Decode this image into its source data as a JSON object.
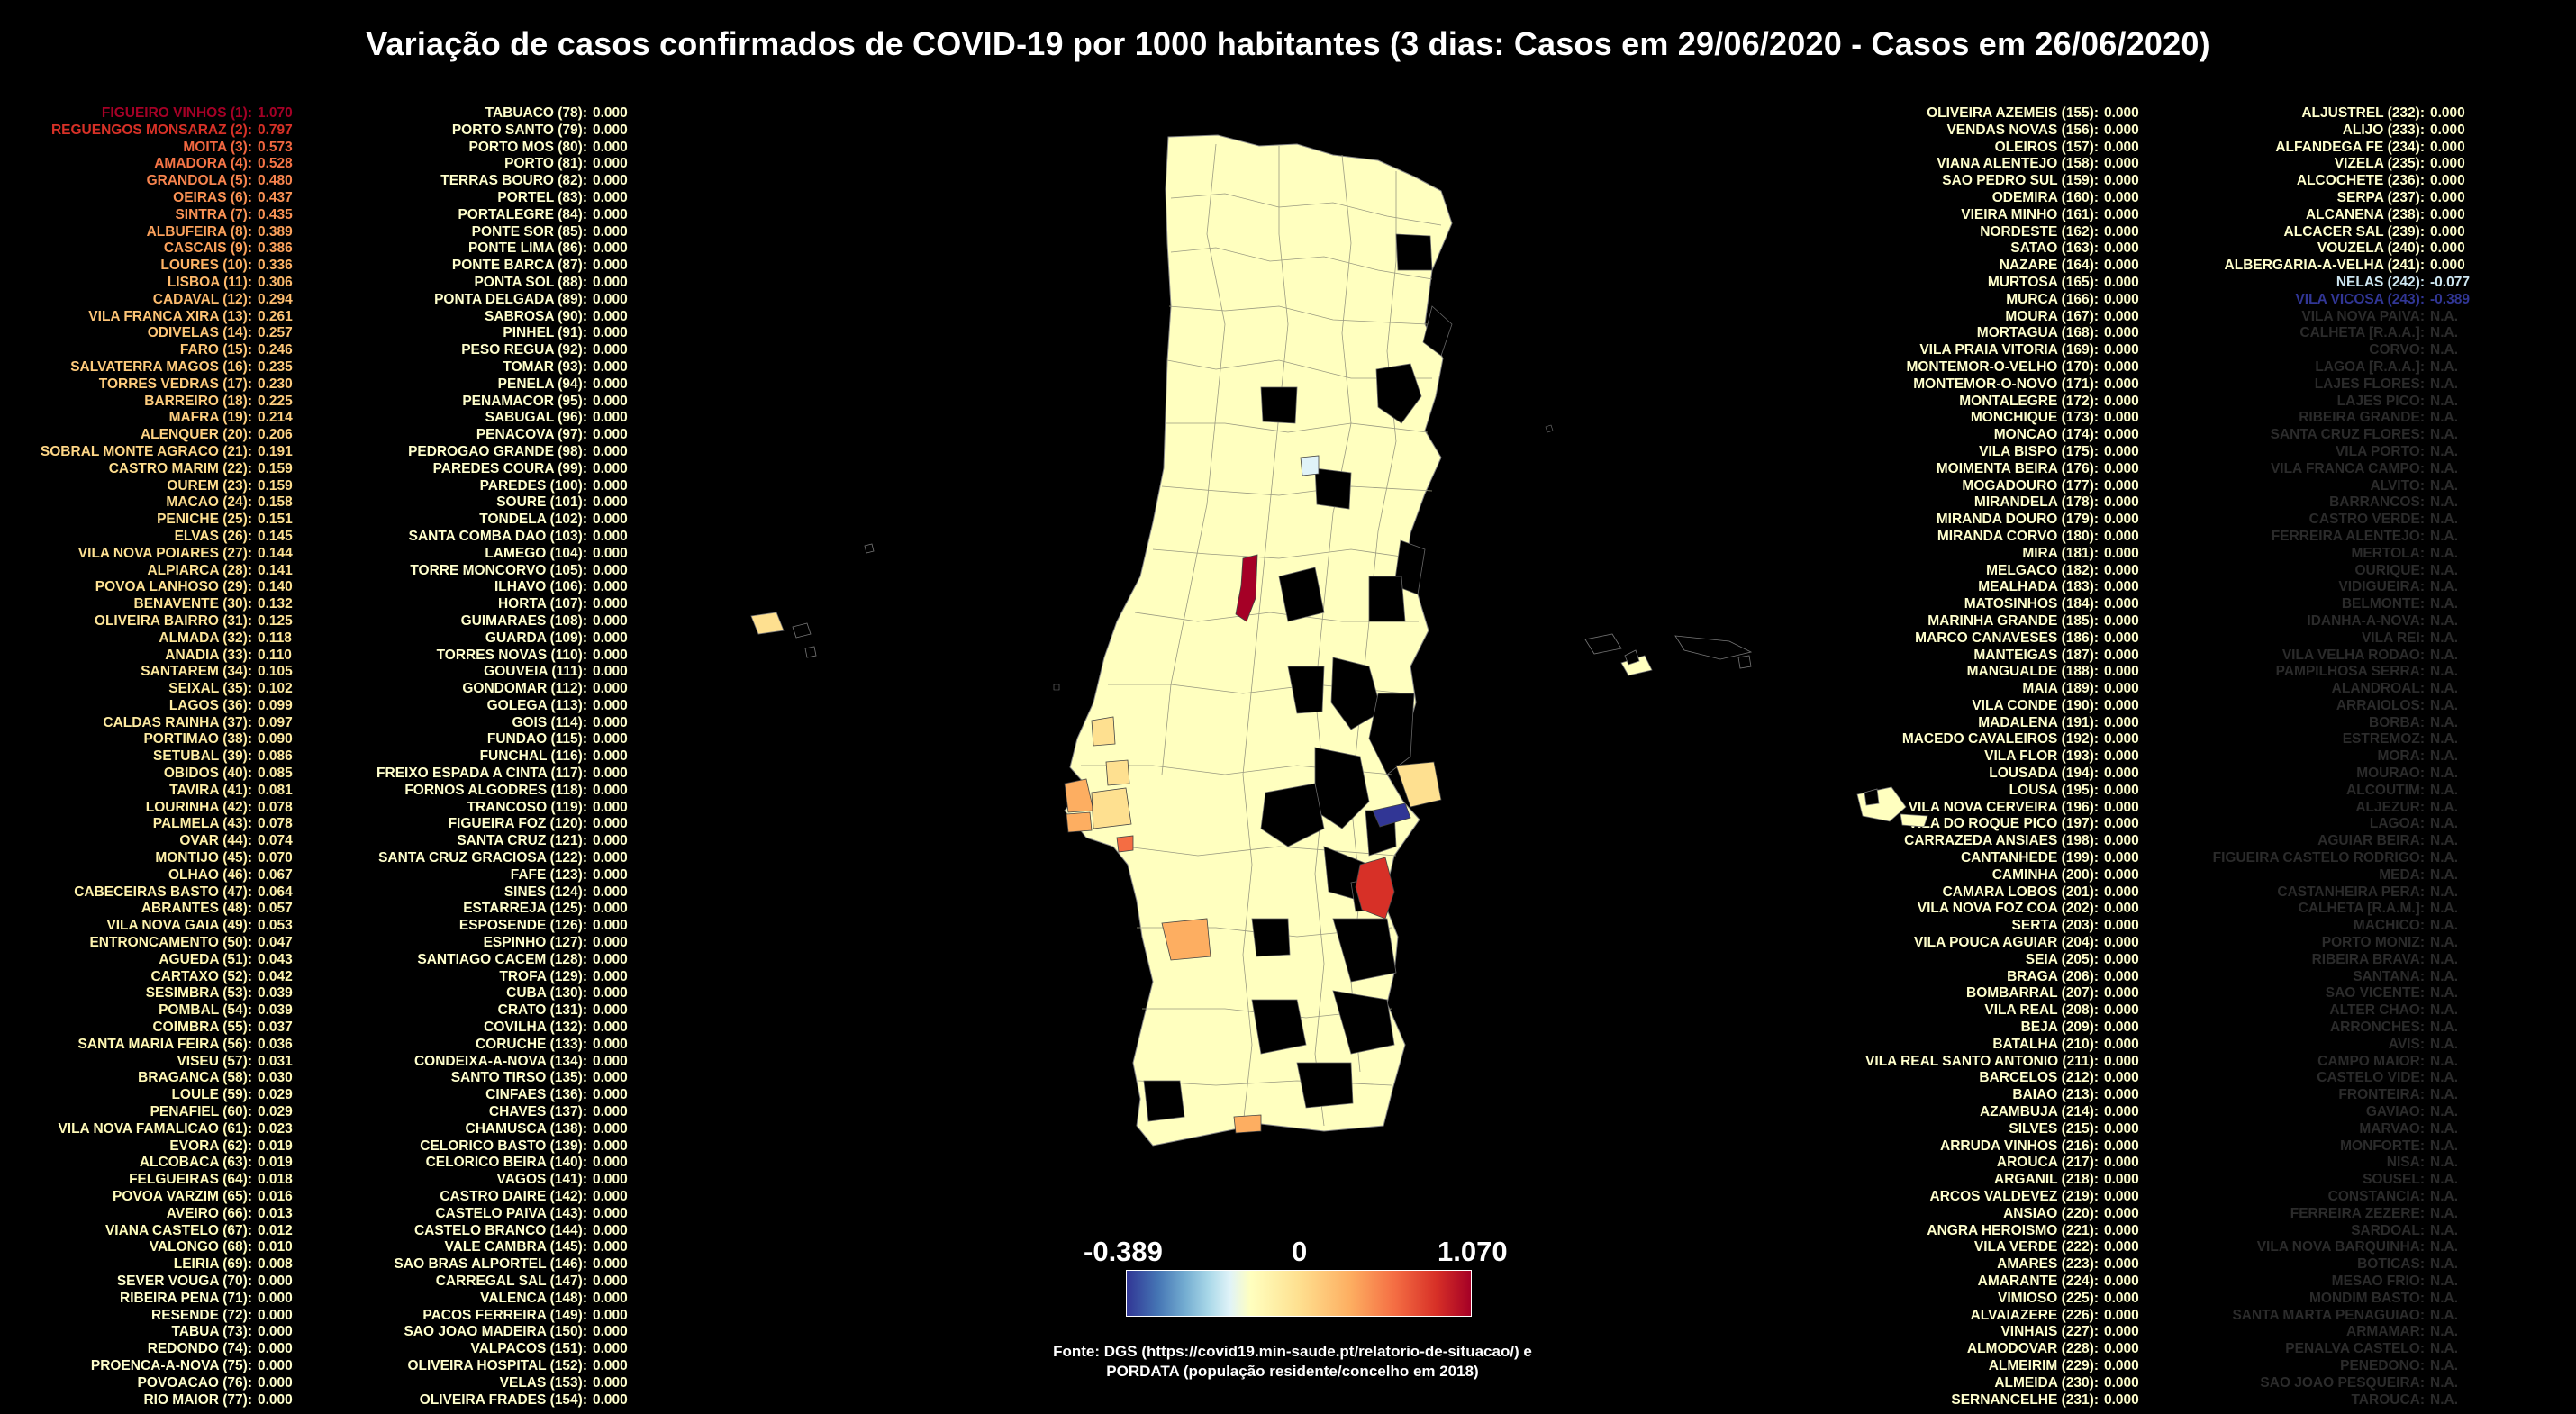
{
  "title": "Variação de casos confirmados de COVID-19 por 1000 habitantes (3 dias: Casos em 29/06/2020 - Casos em 26/06/2020)",
  "legend": {
    "min_label": "-0.389",
    "mid_label": "0",
    "max_label": "1.070",
    "min": -0.389,
    "max": 1.07
  },
  "source_line1": "Fonte: DGS (https://covid19.min-saude.pt/relatorio-de-situacao/) e",
  "source_line2": "PORDATA (população residente/concelho em 2018)",
  "colors": {
    "background": "#000000",
    "na_text": "#2b2b2b",
    "scale": [
      "#313695",
      "#74add1",
      "#e0f3f8",
      "#ffffbf",
      "#fee090",
      "#fdae61",
      "#f46d43",
      "#d73027",
      "#a50026"
    ]
  },
  "columns": [
    [
      [
        "FIGUEIRO VINHOS (1):",
        "1.070"
      ],
      [
        "REGUENGOS MONSARAZ (2):",
        "0.797"
      ],
      [
        "MOITA (3):",
        "0.573"
      ],
      [
        "AMADORA (4):",
        "0.528"
      ],
      [
        "GRANDOLA (5):",
        "0.480"
      ],
      [
        "OEIRAS (6):",
        "0.437"
      ],
      [
        "SINTRA (7):",
        "0.435"
      ],
      [
        "ALBUFEIRA (8):",
        "0.389"
      ],
      [
        "CASCAIS (9):",
        "0.386"
      ],
      [
        "LOURES (10):",
        "0.336"
      ],
      [
        "LISBOA (11):",
        "0.306"
      ],
      [
        "CADAVAL (12):",
        "0.294"
      ],
      [
        "VILA FRANCA XIRA (13):",
        "0.261"
      ],
      [
        "ODIVELAS (14):",
        "0.257"
      ],
      [
        "FARO (15):",
        "0.246"
      ],
      [
        "SALVATERRA MAGOS (16):",
        "0.235"
      ],
      [
        "TORRES VEDRAS (17):",
        "0.230"
      ],
      [
        "BARREIRO (18):",
        "0.225"
      ],
      [
        "MAFRA (19):",
        "0.214"
      ],
      [
        "ALENQUER (20):",
        "0.206"
      ],
      [
        "SOBRAL MONTE AGRACO (21):",
        "0.191"
      ],
      [
        "CASTRO MARIM (22):",
        "0.159"
      ],
      [
        "OUREM (23):",
        "0.159"
      ],
      [
        "MACAO (24):",
        "0.158"
      ],
      [
        "PENICHE (25):",
        "0.151"
      ],
      [
        "ELVAS (26):",
        "0.145"
      ],
      [
        "VILA NOVA POIARES (27):",
        "0.144"
      ],
      [
        "ALPIARCA (28):",
        "0.141"
      ],
      [
        "POVOA LANHOSO (29):",
        "0.140"
      ],
      [
        "BENAVENTE (30):",
        "0.132"
      ],
      [
        "OLIVEIRA BAIRRO (31):",
        "0.125"
      ],
      [
        "ALMADA (32):",
        "0.118"
      ],
      [
        "ANADIA (33):",
        "0.110"
      ],
      [
        "SANTAREM (34):",
        "0.105"
      ],
      [
        "SEIXAL (35):",
        "0.102"
      ],
      [
        "LAGOS (36):",
        "0.099"
      ],
      [
        "CALDAS RAINHA (37):",
        "0.097"
      ],
      [
        "PORTIMAO (38):",
        "0.090"
      ],
      [
        "SETUBAL (39):",
        "0.086"
      ],
      [
        "OBIDOS (40):",
        "0.085"
      ],
      [
        "TAVIRA (41):",
        "0.081"
      ],
      [
        "LOURINHA (42):",
        "0.078"
      ],
      [
        "PALMELA (43):",
        "0.078"
      ],
      [
        "OVAR (44):",
        "0.074"
      ],
      [
        "MONTIJO (45):",
        "0.070"
      ],
      [
        "OLHAO (46):",
        "0.067"
      ],
      [
        "CABECEIRAS BASTO (47):",
        "0.064"
      ],
      [
        "ABRANTES (48):",
        "0.057"
      ],
      [
        "VILA NOVA GAIA (49):",
        "0.053"
      ],
      [
        "ENTRONCAMENTO (50):",
        "0.047"
      ],
      [
        "AGUEDA (51):",
        "0.043"
      ],
      [
        "CARTAXO (52):",
        "0.042"
      ],
      [
        "SESIMBRA (53):",
        "0.039"
      ],
      [
        "POMBAL (54):",
        "0.039"
      ],
      [
        "COIMBRA (55):",
        "0.037"
      ],
      [
        "SANTA MARIA FEIRA (56):",
        "0.036"
      ],
      [
        "VISEU (57):",
        "0.031"
      ],
      [
        "BRAGANCA (58):",
        "0.030"
      ],
      [
        "LOULE (59):",
        "0.029"
      ],
      [
        "PENAFIEL (60):",
        "0.029"
      ],
      [
        "VILA NOVA FAMALICAO (61):",
        "0.023"
      ],
      [
        "EVORA (62):",
        "0.019"
      ],
      [
        "ALCOBACA (63):",
        "0.019"
      ],
      [
        "FELGUEIRAS (64):",
        "0.018"
      ],
      [
        "POVOA VARZIM (65):",
        "0.016"
      ],
      [
        "AVEIRO (66):",
        "0.013"
      ],
      [
        "VIANA CASTELO (67):",
        "0.012"
      ],
      [
        "VALONGO (68):",
        "0.010"
      ],
      [
        "LEIRIA (69):",
        "0.008"
      ],
      [
        "SEVER VOUGA (70):",
        "0.000"
      ],
      [
        "RIBEIRA PENA (71):",
        "0.000"
      ],
      [
        "RESENDE (72):",
        "0.000"
      ],
      [
        "TABUA (73):",
        "0.000"
      ],
      [
        "REDONDO (74):",
        "0.000"
      ],
      [
        "PROENCA-A-NOVA (75):",
        "0.000"
      ],
      [
        "POVOACAO (76):",
        "0.000"
      ],
      [
        "RIO MAIOR (77):",
        "0.000"
      ]
    ],
    [
      [
        "TABUACO (78):",
        "0.000"
      ],
      [
        "PORTO SANTO (79):",
        "0.000"
      ],
      [
        "PORTO MOS (80):",
        "0.000"
      ],
      [
        "PORTO (81):",
        "0.000"
      ],
      [
        "TERRAS BOURO (82):",
        "0.000"
      ],
      [
        "PORTEL (83):",
        "0.000"
      ],
      [
        "PORTALEGRE (84):",
        "0.000"
      ],
      [
        "PONTE SOR (85):",
        "0.000"
      ],
      [
        "PONTE LIMA (86):",
        "0.000"
      ],
      [
        "PONTE BARCA (87):",
        "0.000"
      ],
      [
        "PONTA SOL (88):",
        "0.000"
      ],
      [
        "PONTA DELGADA (89):",
        "0.000"
      ],
      [
        "SABROSA (90):",
        "0.000"
      ],
      [
        "PINHEL (91):",
        "0.000"
      ],
      [
        "PESO REGUA (92):",
        "0.000"
      ],
      [
        "TOMAR (93):",
        "0.000"
      ],
      [
        "PENELA (94):",
        "0.000"
      ],
      [
        "PENAMACOR (95):",
        "0.000"
      ],
      [
        "SABUGAL (96):",
        "0.000"
      ],
      [
        "PENACOVA (97):",
        "0.000"
      ],
      [
        "PEDROGAO GRANDE (98):",
        "0.000"
      ],
      [
        "PAREDES COURA (99):",
        "0.000"
      ],
      [
        "PAREDES (100):",
        "0.000"
      ],
      [
        "SOURE (101):",
        "0.000"
      ],
      [
        "TONDELA (102):",
        "0.000"
      ],
      [
        "SANTA COMBA DAO (103):",
        "0.000"
      ],
      [
        "LAMEGO (104):",
        "0.000"
      ],
      [
        "TORRE MONCORVO (105):",
        "0.000"
      ],
      [
        "ILHAVO (106):",
        "0.000"
      ],
      [
        "HORTA (107):",
        "0.000"
      ],
      [
        "GUIMARAES (108):",
        "0.000"
      ],
      [
        "GUARDA (109):",
        "0.000"
      ],
      [
        "TORRES NOVAS (110):",
        "0.000"
      ],
      [
        "GOUVEIA (111):",
        "0.000"
      ],
      [
        "GONDOMAR (112):",
        "0.000"
      ],
      [
        "GOLEGA (113):",
        "0.000"
      ],
      [
        "GOIS (114):",
        "0.000"
      ],
      [
        "FUNDAO (115):",
        "0.000"
      ],
      [
        "FUNCHAL (116):",
        "0.000"
      ],
      [
        "FREIXO ESPADA A CINTA (117):",
        "0.000"
      ],
      [
        "FORNOS ALGODRES (118):",
        "0.000"
      ],
      [
        "TRANCOSO (119):",
        "0.000"
      ],
      [
        "FIGUEIRA FOZ (120):",
        "0.000"
      ],
      [
        "SANTA CRUZ (121):",
        "0.000"
      ],
      [
        "SANTA CRUZ GRACIOSA (122):",
        "0.000"
      ],
      [
        "FAFE (123):",
        "0.000"
      ],
      [
        "SINES (124):",
        "0.000"
      ],
      [
        "ESTARREJA (125):",
        "0.000"
      ],
      [
        "ESPOSENDE (126):",
        "0.000"
      ],
      [
        "ESPINHO (127):",
        "0.000"
      ],
      [
        "SANTIAGO CACEM (128):",
        "0.000"
      ],
      [
        "TROFA (129):",
        "0.000"
      ],
      [
        "CUBA (130):",
        "0.000"
      ],
      [
        "CRATO (131):",
        "0.000"
      ],
      [
        "COVILHA (132):",
        "0.000"
      ],
      [
        "CORUCHE (133):",
        "0.000"
      ],
      [
        "CONDEIXA-A-NOVA (134):",
        "0.000"
      ],
      [
        "SANTO TIRSO (135):",
        "0.000"
      ],
      [
        "CINFAES (136):",
        "0.000"
      ],
      [
        "CHAVES (137):",
        "0.000"
      ],
      [
        "CHAMUSCA (138):",
        "0.000"
      ],
      [
        "CELORICO BASTO (139):",
        "0.000"
      ],
      [
        "CELORICO BEIRA (140):",
        "0.000"
      ],
      [
        "VAGOS (141):",
        "0.000"
      ],
      [
        "CASTRO DAIRE (142):",
        "0.000"
      ],
      [
        "CASTELO PAIVA (143):",
        "0.000"
      ],
      [
        "CASTELO BRANCO (144):",
        "0.000"
      ],
      [
        "VALE CAMBRA (145):",
        "0.000"
      ],
      [
        "SAO BRAS ALPORTEL (146):",
        "0.000"
      ],
      [
        "CARREGAL SAL (147):",
        "0.000"
      ],
      [
        "VALENCA (148):",
        "0.000"
      ],
      [
        "PACOS FERREIRA (149):",
        "0.000"
      ],
      [
        "SAO JOAO MADEIRA (150):",
        "0.000"
      ],
      [
        "VALPACOS (151):",
        "0.000"
      ],
      [
        "OLIVEIRA HOSPITAL (152):",
        "0.000"
      ],
      [
        "VELAS (153):",
        "0.000"
      ],
      [
        "OLIVEIRA FRADES (154):",
        "0.000"
      ]
    ],
    [
      [
        "OLIVEIRA AZEMEIS (155):",
        "0.000"
      ],
      [
        "VENDAS NOVAS (156):",
        "0.000"
      ],
      [
        "OLEIROS (157):",
        "0.000"
      ],
      [
        "VIANA ALENTEJO (158):",
        "0.000"
      ],
      [
        "SAO PEDRO SUL (159):",
        "0.000"
      ],
      [
        "ODEMIRA (160):",
        "0.000"
      ],
      [
        "VIEIRA MINHO (161):",
        "0.000"
      ],
      [
        "NORDESTE (162):",
        "0.000"
      ],
      [
        "SATAO (163):",
        "0.000"
      ],
      [
        "NAZARE (164):",
        "0.000"
      ],
      [
        "MURTOSA (165):",
        "0.000"
      ],
      [
        "MURCA (166):",
        "0.000"
      ],
      [
        "MOURA (167):",
        "0.000"
      ],
      [
        "MORTAGUA (168):",
        "0.000"
      ],
      [
        "VILA PRAIA VITORIA (169):",
        "0.000"
      ],
      [
        "MONTEMOR-O-VELHO (170):",
        "0.000"
      ],
      [
        "MONTEMOR-O-NOVO (171):",
        "0.000"
      ],
      [
        "MONTALEGRE (172):",
        "0.000"
      ],
      [
        "MONCHIQUE (173):",
        "0.000"
      ],
      [
        "MONCAO (174):",
        "0.000"
      ],
      [
        "VILA BISPO (175):",
        "0.000"
      ],
      [
        "MOIMENTA BEIRA (176):",
        "0.000"
      ],
      [
        "MOGADOURO (177):",
        "0.000"
      ],
      [
        "MIRANDELA (178):",
        "0.000"
      ],
      [
        "MIRANDA DOURO (179):",
        "0.000"
      ],
      [
        "MIRANDA CORVO (180):",
        "0.000"
      ],
      [
        "MIRA (181):",
        "0.000"
      ],
      [
        "MELGACO (182):",
        "0.000"
      ],
      [
        "MEALHADA (183):",
        "0.000"
      ],
      [
        "MATOSINHOS (184):",
        "0.000"
      ],
      [
        "MARINHA GRANDE (185):",
        "0.000"
      ],
      [
        "MARCO CANAVESES (186):",
        "0.000"
      ],
      [
        "MANTEIGAS (187):",
        "0.000"
      ],
      [
        "MANGUALDE (188):",
        "0.000"
      ],
      [
        "MAIA (189):",
        "0.000"
      ],
      [
        "VILA CONDE (190):",
        "0.000"
      ],
      [
        "MADALENA (191):",
        "0.000"
      ],
      [
        "MACEDO CAVALEIROS (192):",
        "0.000"
      ],
      [
        "VILA FLOR (193):",
        "0.000"
      ],
      [
        "LOUSADA (194):",
        "0.000"
      ],
      [
        "LOUSA (195):",
        "0.000"
      ],
      [
        "VILA NOVA CERVEIRA (196):",
        "0.000"
      ],
      [
        "VILA DO ROQUE PICO (197):",
        "0.000"
      ],
      [
        "CARRAZEDA ANSIAES (198):",
        "0.000"
      ],
      [
        "CANTANHEDE (199):",
        "0.000"
      ],
      [
        "CAMINHA (200):",
        "0.000"
      ],
      [
        "CAMARA LOBOS (201):",
        "0.000"
      ],
      [
        "VILA NOVA FOZ COA (202):",
        "0.000"
      ],
      [
        "SERTA (203):",
        "0.000"
      ],
      [
        "VILA POUCA AGUIAR (204):",
        "0.000"
      ],
      [
        "SEIA (205):",
        "0.000"
      ],
      [
        "BRAGA (206):",
        "0.000"
      ],
      [
        "BOMBARRAL (207):",
        "0.000"
      ],
      [
        "VILA REAL (208):",
        "0.000"
      ],
      [
        "BEJA (209):",
        "0.000"
      ],
      [
        "BATALHA (210):",
        "0.000"
      ],
      [
        "VILA REAL SANTO ANTONIO (211):",
        "0.000"
      ],
      [
        "BARCELOS (212):",
        "0.000"
      ],
      [
        "BAIAO (213):",
        "0.000"
      ],
      [
        "AZAMBUJA (214):",
        "0.000"
      ],
      [
        "SILVES (215):",
        "0.000"
      ],
      [
        "ARRUDA VINHOS (216):",
        "0.000"
      ],
      [
        "AROUCA (217):",
        "0.000"
      ],
      [
        "ARGANIL (218):",
        "0.000"
      ],
      [
        "ARCOS VALDEVEZ (219):",
        "0.000"
      ],
      [
        "ANSIAO (220):",
        "0.000"
      ],
      [
        "ANGRA HEROISMO (221):",
        "0.000"
      ],
      [
        "VILA VERDE (222):",
        "0.000"
      ],
      [
        "AMARES (223):",
        "0.000"
      ],
      [
        "AMARANTE (224):",
        "0.000"
      ],
      [
        "VIMIOSO (225):",
        "0.000"
      ],
      [
        "ALVAIAZERE (226):",
        "0.000"
      ],
      [
        "VINHAIS (227):",
        "0.000"
      ],
      [
        "ALMODOVAR (228):",
        "0.000"
      ],
      [
        "ALMEIRIM (229):",
        "0.000"
      ],
      [
        "ALMEIDA (230):",
        "0.000"
      ],
      [
        "SERNANCELHE (231):",
        "0.000"
      ]
    ],
    [
      [
        "ALJUSTREL (232):",
        "0.000"
      ],
      [
        "ALIJO (233):",
        "0.000"
      ],
      [
        "ALFANDEGA FE (234):",
        "0.000"
      ],
      [
        "VIZELA (235):",
        "0.000"
      ],
      [
        "ALCOCHETE (236):",
        "0.000"
      ],
      [
        "SERPA (237):",
        "0.000"
      ],
      [
        "ALCANENA (238):",
        "0.000"
      ],
      [
        "ALCACER SAL (239):",
        "0.000"
      ],
      [
        "VOUZELA (240):",
        "0.000"
      ],
      [
        "ALBERGARIA-A-VELHA (241):",
        "0.000"
      ],
      [
        "NELAS (242):",
        "-0.077"
      ],
      [
        "VILA VICOSA (243):",
        "-0.389"
      ],
      [
        "VILA NOVA PAIVA:",
        "N.A."
      ],
      [
        "CALHETA [R.A.A.]:",
        "N.A."
      ],
      [
        "CORVO:",
        "N.A."
      ],
      [
        "LAGOA [R.A.A.]:",
        "N.A."
      ],
      [
        "LAJES FLORES:",
        "N.A."
      ],
      [
        "LAJES PICO:",
        "N.A."
      ],
      [
        "RIBEIRA GRANDE:",
        "N.A."
      ],
      [
        "SANTA CRUZ FLORES:",
        "N.A."
      ],
      [
        "VILA PORTO:",
        "N.A."
      ],
      [
        "VILA FRANCA CAMPO:",
        "N.A."
      ],
      [
        "ALVITO:",
        "N.A."
      ],
      [
        "BARRANCOS:",
        "N.A."
      ],
      [
        "CASTRO VERDE:",
        "N.A."
      ],
      [
        "FERREIRA ALENTEJO:",
        "N.A."
      ],
      [
        "MERTOLA:",
        "N.A."
      ],
      [
        "OURIQUE:",
        "N.A."
      ],
      [
        "VIDIGUEIRA:",
        "N.A."
      ],
      [
        "BELMONTE:",
        "N.A."
      ],
      [
        "IDANHA-A-NOVA:",
        "N.A."
      ],
      [
        "VILA REI:",
        "N.A."
      ],
      [
        "VILA VELHA RODAO:",
        "N.A."
      ],
      [
        "PAMPILHOSA SERRA:",
        "N.A."
      ],
      [
        "ALANDROAL:",
        "N.A."
      ],
      [
        "ARRAIOLOS:",
        "N.A."
      ],
      [
        "BORBA:",
        "N.A."
      ],
      [
        "ESTREMOZ:",
        "N.A."
      ],
      [
        "MORA:",
        "N.A."
      ],
      [
        "MOURAO:",
        "N.A."
      ],
      [
        "ALCOUTIM:",
        "N.A."
      ],
      [
        "ALJEZUR:",
        "N.A."
      ],
      [
        "LAGOA:",
        "N.A."
      ],
      [
        "AGUIAR BEIRA:",
        "N.A."
      ],
      [
        "FIGUEIRA CASTELO RODRIGO:",
        "N.A."
      ],
      [
        "MEDA:",
        "N.A."
      ],
      [
        "CASTANHEIRA PERA:",
        "N.A."
      ],
      [
        "CALHETA [R.A.M.]:",
        "N.A."
      ],
      [
        "MACHICO:",
        "N.A."
      ],
      [
        "PORTO MONIZ:",
        "N.A."
      ],
      [
        "RIBEIRA BRAVA:",
        "N.A."
      ],
      [
        "SANTANA:",
        "N.A."
      ],
      [
        "SAO VICENTE:",
        "N.A."
      ],
      [
        "ALTER CHAO:",
        "N.A."
      ],
      [
        "ARRONCHES:",
        "N.A."
      ],
      [
        "AVIS:",
        "N.A."
      ],
      [
        "CAMPO MAIOR:",
        "N.A."
      ],
      [
        "CASTELO VIDE:",
        "N.A."
      ],
      [
        "FRONTEIRA:",
        "N.A."
      ],
      [
        "GAVIAO:",
        "N.A."
      ],
      [
        "MARVAO:",
        "N.A."
      ],
      [
        "MONFORTE:",
        "N.A."
      ],
      [
        "NISA:",
        "N.A."
      ],
      [
        "SOUSEL:",
        "N.A."
      ],
      [
        "CONSTANCIA:",
        "N.A."
      ],
      [
        "FERREIRA ZEZERE:",
        "N.A."
      ],
      [
        "SARDOAL:",
        "N.A."
      ],
      [
        "VILA NOVA BARQUINHA:",
        "N.A."
      ],
      [
        "BOTICAS:",
        "N.A."
      ],
      [
        "MESAO FRIO:",
        "N.A."
      ],
      [
        "MONDIM BASTO:",
        "N.A."
      ],
      [
        "SANTA MARTA PENAGUIAO:",
        "N.A."
      ],
      [
        "ARMAMAR:",
        "N.A."
      ],
      [
        "PENALVA CASTELO:",
        "N.A."
      ],
      [
        "PENEDONO:",
        "N.A."
      ],
      [
        "SAO JOAO PESQUEIRA:",
        "N.A."
      ],
      [
        "TAROUCA:",
        "N.A."
      ]
    ]
  ]
}
